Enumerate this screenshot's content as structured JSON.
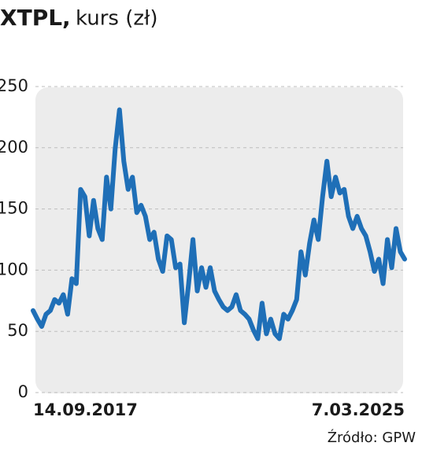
{
  "chart_data": {
    "type": "line",
    "title": "XTPL,",
    "subtitle": "kurs (zł)",
    "source": "Źródło: GPW",
    "categories": [
      "14.09.2017",
      null,
      null,
      null,
      null,
      null,
      null,
      null,
      null,
      null,
      null,
      null,
      null,
      null,
      null,
      null,
      null,
      null,
      null,
      null,
      null,
      null,
      null,
      null,
      null,
      null,
      null,
      null,
      null,
      null,
      null,
      null,
      null,
      null,
      null,
      null,
      null,
      null,
      null,
      null,
      null,
      null,
      null,
      null,
      null,
      null,
      null,
      null,
      null,
      null,
      null,
      null,
      null,
      null,
      null,
      null,
      null,
      null,
      null,
      null,
      null,
      null,
      null,
      null,
      null,
      null,
      null,
      null,
      null,
      null,
      null,
      null,
      null,
      null,
      null,
      null,
      null,
      null,
      null,
      null,
      null,
      null,
      null,
      null,
      null,
      null,
      "7.03.2025"
    ],
    "series": [
      {
        "name": "XTPL",
        "color": "#1f6fb7",
        "values": [
          67,
          60,
          54,
          64,
          67,
          76,
          73,
          80,
          64,
          93,
          89,
          166,
          160,
          128,
          157,
          134,
          125,
          176,
          150,
          199,
          231,
          189,
          166,
          176,
          147,
          153,
          144,
          125,
          131,
          109,
          99,
          128,
          125,
          102,
          105,
          57,
          89,
          125,
          83,
          102,
          86,
          102,
          83,
          76,
          70,
          67,
          70,
          80,
          67,
          64,
          60,
          51,
          44,
          73,
          48,
          60,
          48,
          44,
          64,
          60,
          67,
          76,
          115,
          96,
          122,
          141,
          125,
          160,
          189,
          160,
          176,
          163,
          166,
          144,
          134,
          144,
          134,
          128,
          115,
          99,
          109,
          89,
          125,
          102,
          134,
          115,
          109
        ]
      }
    ],
    "ylim": [
      0,
      250
    ],
    "yticks": [
      0,
      50,
      100,
      150,
      200,
      250
    ],
    "grid": true
  }
}
